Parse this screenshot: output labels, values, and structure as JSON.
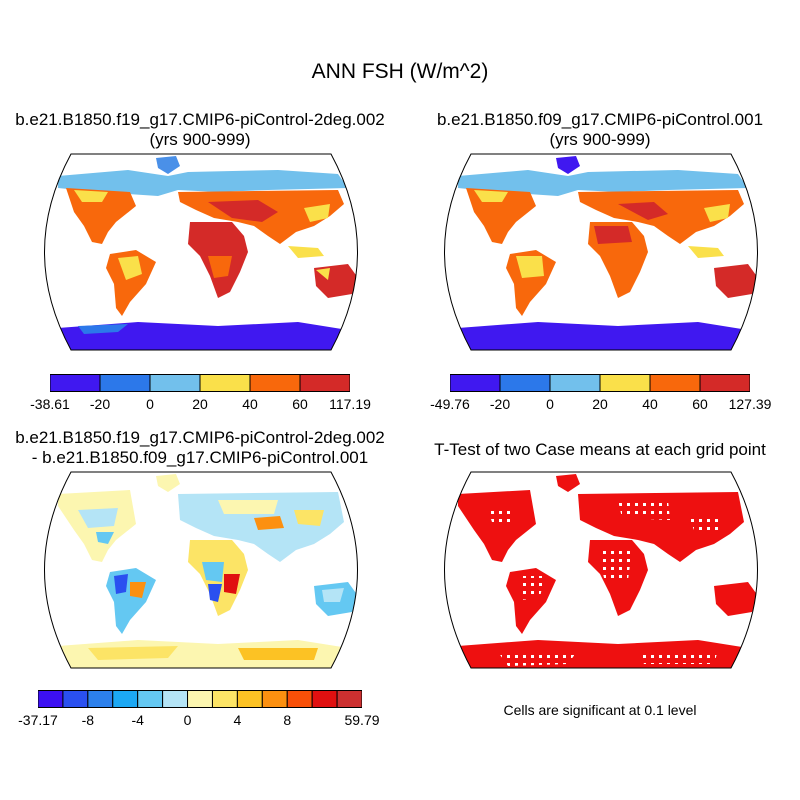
{
  "main_title": "ANN FSH (W/m^2)",
  "panels": [
    {
      "title_line1": "b.e21.B1850.f19_g17.CMIP6-piControl-2deg.002",
      "title_line2": "(yrs 900-999)",
      "colorbar": {
        "colors": [
          "#4018f0",
          "#2c78ea",
          "#72c0ec",
          "#fae04a",
          "#f8680c",
          "#d42a28"
        ],
        "ticks": [
          "-38.61",
          "-20",
          "0",
          "20",
          "40",
          "60",
          "117.19"
        ]
      }
    },
    {
      "title_line1": "b.e21.B1850.f09_g17.CMIP6-piControl.001",
      "title_line2": "(yrs 900-999)",
      "colorbar": {
        "colors": [
          "#4018f0",
          "#2c78ea",
          "#72c0ec",
          "#fae04a",
          "#f8680c",
          "#d42a28"
        ],
        "ticks": [
          "-49.76",
          "-20",
          "0",
          "20",
          "40",
          "60",
          "127.39"
        ]
      }
    },
    {
      "title_line1": "b.e21.B1850.f19_g17.CMIP6-piControl-2deg.002",
      "title_line2": "- b.e21.B1850.f09_g17.CMIP6-piControl.001",
      "colorbar": {
        "colors": [
          "#3c10f2",
          "#2a50f0",
          "#2c80ec",
          "#1ca8f4",
          "#64c8f2",
          "#b4e4f6",
          "#fcf6b0",
          "#fce466",
          "#fcc224",
          "#fc9010",
          "#f85008",
          "#e01010",
          "#cc3030"
        ],
        "ticks": [
          "-37.17",
          "-8",
          "-4",
          "0",
          "4",
          "8",
          "59.79"
        ]
      }
    },
    {
      "title_line1": "T-Test of two Case means at each grid point",
      "note": "Cells are significant at 0.1 level"
    }
  ]
}
